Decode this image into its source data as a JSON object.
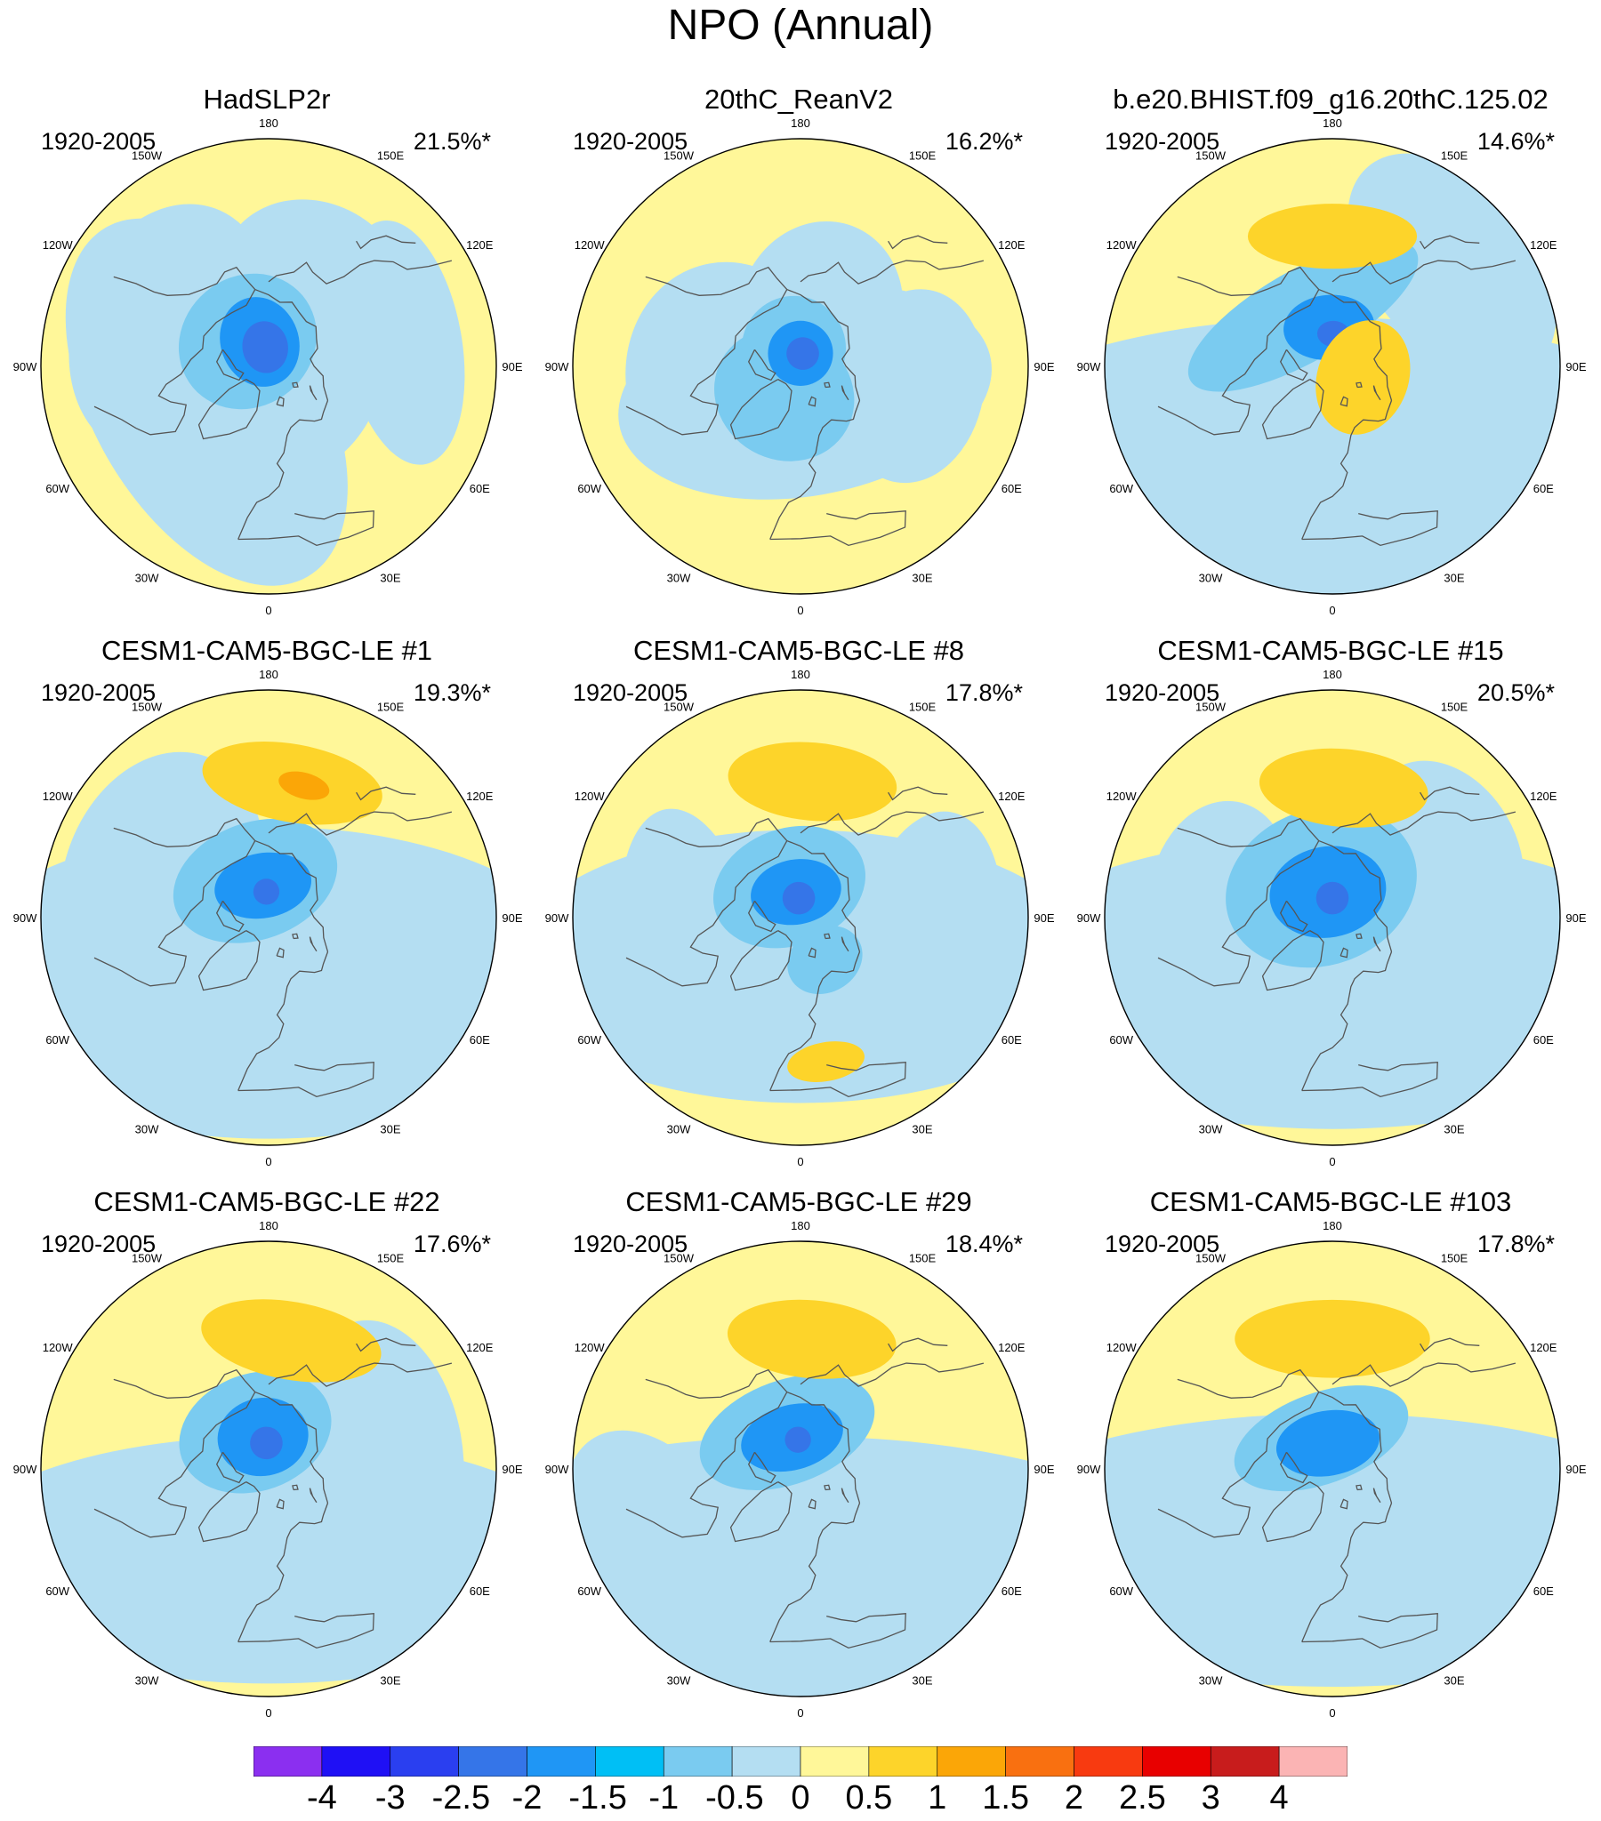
{
  "title": "NPO (Annual)",
  "colors": {
    "ocean_map_bg": "#fff799",
    "coast": "#555555"
  },
  "panels": [
    {
      "title": "HadSLP2r",
      "period": "1920-2005",
      "pct": "21.5%*",
      "blobs": [
        {
          "lon": 60,
          "lat": 85,
          "rx": 34,
          "ry": 30,
          "level": -0.5
        },
        {
          "lon": 300,
          "lat": 68,
          "rx": 62,
          "ry": 35,
          "level": -0.5
        },
        {
          "lon": 250,
          "lat": 58,
          "rx": 40,
          "ry": 30,
          "level": -0.5
        },
        {
          "lon": 150,
          "lat": 62,
          "rx": 30,
          "ry": 26,
          "level": -0.5
        },
        {
          "lon": 100,
          "lat": 48,
          "rx": 38,
          "ry": 18,
          "level": -0.5
        },
        {
          "lon": 220,
          "lat": 80,
          "rx": 22,
          "ry": 20,
          "level": -1
        },
        {
          "lon": 200,
          "lat": 82,
          "rx": 12,
          "ry": 14,
          "level": -1.5
        },
        {
          "lon": 190,
          "lat": 84,
          "rx": 7,
          "ry": 8,
          "level": -2
        }
      ]
    },
    {
      "title": "20thC_ReanV2",
      "period": "1920-2005",
      "pct": "16.2%*",
      "blobs": [
        {
          "lon": 10,
          "lat": 82,
          "rx": 58,
          "ry": 32,
          "level": -0.5
        },
        {
          "lon": 280,
          "lat": 68,
          "rx": 36,
          "ry": 32,
          "level": -0.5
        },
        {
          "lon": 80,
          "lat": 55,
          "rx": 30,
          "ry": 22,
          "level": -0.5
        },
        {
          "lon": 160,
          "lat": 72,
          "rx": 25,
          "ry": 28,
          "level": -0.5
        },
        {
          "lon": 330,
          "lat": 80,
          "rx": 22,
          "ry": 20,
          "level": -1
        },
        {
          "lon": 200,
          "lat": 84,
          "rx": 16,
          "ry": 16,
          "level": -1
        },
        {
          "lon": 180,
          "lat": 86,
          "rx": 10,
          "ry": 10,
          "level": -1.5
        },
        {
          "lon": 170,
          "lat": 86,
          "rx": 5,
          "ry": 5,
          "level": -2
        }
      ]
    },
    {
      "title": "b.e20.BHIST.f09_g16.20thC.125.02",
      "period": "1920-2005",
      "pct": "14.6%*",
      "blobs": [
        {
          "lon": 0,
          "lat": 60,
          "rx": 120,
          "ry": 45,
          "level": -0.5
        },
        {
          "lon": 130,
          "lat": 42,
          "rx": 40,
          "ry": 25,
          "level": -0.5
        },
        {
          "lon": 210,
          "lat": 72,
          "rx": 40,
          "ry": 14,
          "level": -1
        },
        {
          "lon": 185,
          "lat": 78,
          "rx": 14,
          "ry": 10,
          "level": -1.5
        },
        {
          "lon": 178,
          "lat": 80,
          "rx": 5,
          "ry": 4,
          "level": -2
        },
        {
          "lon": 180,
          "lat": 50,
          "rx": 26,
          "ry": 10,
          "level": 1
        },
        {
          "lon": 70,
          "lat": 80,
          "rx": 18,
          "ry": 14,
          "level": 1
        }
      ]
    },
    {
      "title": "CESM1-CAM5-BGC-LE #1",
      "period": "1920-2005",
      "pct": "19.3%*",
      "blobs": [
        {
          "lon": 0,
          "lat": 70,
          "rx": 100,
          "ry": 48,
          "level": -0.5
        },
        {
          "lon": 250,
          "lat": 55,
          "rx": 40,
          "ry": 30,
          "level": -0.5
        },
        {
          "lon": 200,
          "lat": 78,
          "rx": 26,
          "ry": 18,
          "level": -1
        },
        {
          "lon": 190,
          "lat": 80,
          "rx": 15,
          "ry": 10,
          "level": -1.5
        },
        {
          "lon": 185,
          "lat": 82,
          "rx": 4,
          "ry": 4,
          "level": -2
        },
        {
          "lon": 170,
          "lat": 48,
          "rx": 28,
          "ry": 12,
          "level": 1
        },
        {
          "lon": 165,
          "lat": 48,
          "rx": 8,
          "ry": 4,
          "level": 1.5
        }
      ]
    },
    {
      "title": "CESM1-CAM5-BGC-LE #8",
      "period": "1920-2005",
      "pct": "17.8%*",
      "blobs": [
        {
          "lon": 0,
          "lat": 75,
          "rx": 90,
          "ry": 42,
          "level": -0.5
        },
        {
          "lon": 280,
          "lat": 55,
          "rx": 40,
          "ry": 20,
          "level": -0.5
        },
        {
          "lon": 80,
          "lat": 50,
          "rx": 40,
          "ry": 22,
          "level": -0.5
        },
        {
          "lon": 200,
          "lat": 80,
          "rx": 24,
          "ry": 18,
          "level": -1
        },
        {
          "lon": 190,
          "lat": 82,
          "rx": 14,
          "ry": 10,
          "level": -1.5
        },
        {
          "lon": 185,
          "lat": 84,
          "rx": 5,
          "ry": 5,
          "level": -2
        },
        {
          "lon": 30,
          "lat": 75,
          "rx": 12,
          "ry": 10,
          "level": -1
        },
        {
          "lon": 175,
          "lat": 48,
          "rx": 26,
          "ry": 12,
          "level": 1
        },
        {
          "lon": 10,
          "lat": 45,
          "rx": 12,
          "ry": 6,
          "level": 1
        }
      ]
    },
    {
      "title": "CESM1-CAM5-BGC-LE #15",
      "period": "1920-2005",
      "pct": "20.5%*",
      "blobs": [
        {
          "lon": 0,
          "lat": 70,
          "rx": 110,
          "ry": 45,
          "level": -0.5
        },
        {
          "lon": 120,
          "lat": 50,
          "rx": 30,
          "ry": 22,
          "level": -0.5
        },
        {
          "lon": 260,
          "lat": 55,
          "rx": 30,
          "ry": 22,
          "level": -0.5
        },
        {
          "lon": 200,
          "lat": 80,
          "rx": 30,
          "ry": 24,
          "level": -1
        },
        {
          "lon": 190,
          "lat": 82,
          "rx": 18,
          "ry": 14,
          "level": -1.5
        },
        {
          "lon": 180,
          "lat": 84,
          "rx": 5,
          "ry": 5,
          "level": -2
        },
        {
          "lon": 175,
          "lat": 50,
          "rx": 26,
          "ry": 12,
          "level": 1
        }
      ]
    },
    {
      "title": "CESM1-CAM5-BGC-LE #22",
      "period": "1920-2005",
      "pct": "17.6%*",
      "blobs": [
        {
          "lon": 0,
          "lat": 62,
          "rx": 100,
          "ry": 38,
          "level": -0.5
        },
        {
          "lon": 100,
          "lat": 55,
          "rx": 40,
          "ry": 25,
          "level": -0.5
        },
        {
          "lon": 200,
          "lat": 78,
          "rx": 24,
          "ry": 18,
          "level": -1
        },
        {
          "lon": 190,
          "lat": 80,
          "rx": 14,
          "ry": 12,
          "level": -1.5
        },
        {
          "lon": 185,
          "lat": 82,
          "rx": 5,
          "ry": 5,
          "level": -2
        },
        {
          "lon": 170,
          "lat": 50,
          "rx": 28,
          "ry": 12,
          "level": 1
        }
      ]
    },
    {
      "title": "CESM1-CAM5-BGC-LE #29",
      "period": "1920-2005",
      "pct": "18.4%*",
      "blobs": [
        {
          "lon": 0,
          "lat": 60,
          "rx": 120,
          "ry": 40,
          "level": -0.5
        },
        {
          "lon": 300,
          "lat": 40,
          "rx": 40,
          "ry": 25,
          "level": -0.5
        },
        {
          "lon": 200,
          "lat": 78,
          "rx": 28,
          "ry": 16,
          "level": -1
        },
        {
          "lon": 195,
          "lat": 80,
          "rx": 16,
          "ry": 10,
          "level": -1.5
        },
        {
          "lon": 185,
          "lat": 81,
          "rx": 4,
          "ry": 4,
          "level": -2
        },
        {
          "lon": 175,
          "lat": 50,
          "rx": 26,
          "ry": 12,
          "level": 1
        }
      ]
    },
    {
      "title": "CESM1-CAM5-BGC-LE #103",
      "period": "1920-2005",
      "pct": "17.8%*",
      "blobs": [
        {
          "lon": 0,
          "lat": 65,
          "rx": 120,
          "ry": 42,
          "level": -0.5
        },
        {
          "lon": 300,
          "lat": 50,
          "rx": 30,
          "ry": 20,
          "level": -0.5
        },
        {
          "lon": 200,
          "lat": 80,
          "rx": 28,
          "ry": 14,
          "level": -1
        },
        {
          "lon": 190,
          "lat": 82,
          "rx": 16,
          "ry": 10,
          "level": -1.5
        },
        {
          "lon": 180,
          "lat": 50,
          "rx": 30,
          "ry": 12,
          "level": 1
        }
      ]
    }
  ],
  "lon_labels": [
    "180",
    "150E",
    "120E",
    "90E",
    "60E",
    "30E",
    "0",
    "30W",
    "60W",
    "90W",
    "120W",
    "150W"
  ],
  "colorbar": {
    "levels": [
      "-4",
      "-3",
      "-2.5",
      "-2",
      "-1.5",
      "-1",
      "-0.5",
      "0",
      "0.5",
      "1",
      "1.5",
      "2",
      "2.5",
      "3",
      "4"
    ],
    "colors": [
      "#8b2ff0",
      "#1f10f5",
      "#2a3ff0",
      "#3575e8",
      "#1f96f5",
      "#00bff5",
      "#7acbf0",
      "#b4def2",
      "#fff799",
      "#fdd42a",
      "#fba607",
      "#f97010",
      "#f83a10",
      "#e80000",
      "#c81c1c",
      "#fbb4b4"
    ],
    "level_colors": {
      "-2": "#3575e8",
      "-1.5": "#1f96f5",
      "-1": "#7acbf0",
      "-0.5": "#b4def2",
      "1": "#fdd42a",
      "1.5": "#fba607"
    }
  }
}
